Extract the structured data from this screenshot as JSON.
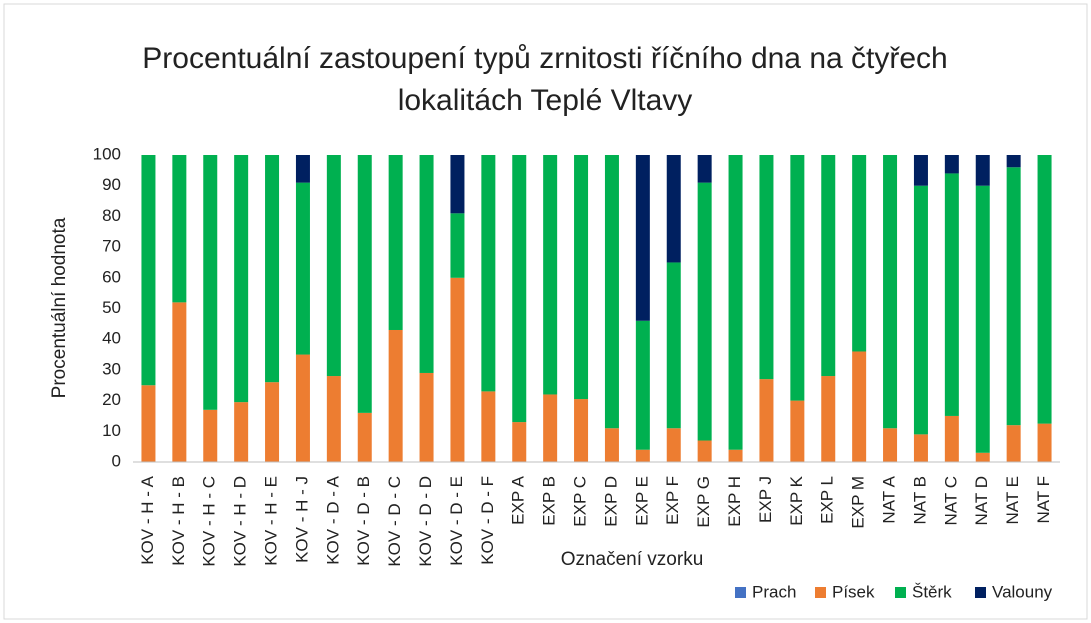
{
  "chart_data": {
    "type": "stacked_bar",
    "title": "Procentuální zastoupení typů zrnitosti říčního dna na čtyřech lokalitách Teplé Vltavy",
    "x_label": "Označení vzorku",
    "y_label": "Procentuální hodnota",
    "categories": [
      "KOV - H - A",
      "KOV - H - B",
      "KOV - H - C",
      "KOV - H - D",
      "KOV - H - E",
      "KOV - H - J",
      "KOV - D - A",
      "KOV - D - B",
      "KOV - D - C",
      "KOV - D - D",
      "KOV - D - E",
      "KOV - D - F",
      "EXP A",
      "EXP B",
      "EXP C",
      "EXP D",
      "EXP E",
      "EXP F",
      "EXP G",
      "EXP H",
      "EXP J",
      "EXP K",
      "EXP L",
      "EXP M",
      "NAT A",
      "NAT B",
      "NAT C",
      "NAT D",
      "NAT E",
      "NAT F"
    ],
    "series": [
      {
        "name": "Prach",
        "color": "#4472c4",
        "values": [
          0,
          0,
          0,
          0,
          0,
          0,
          0,
          0,
          0,
          0,
          0,
          0,
          0,
          0,
          0,
          0,
          0,
          0,
          0,
          0,
          0,
          0,
          0,
          0,
          0,
          0,
          0,
          0,
          0,
          0
        ]
      },
      {
        "name": "Písek",
        "color": "#ed7d31",
        "values": [
          25,
          52,
          17,
          19.5,
          26,
          35,
          28,
          16,
          43,
          29,
          60,
          23,
          13,
          22,
          20.5,
          11,
          4,
          11,
          7,
          4,
          27,
          20,
          28,
          36,
          11,
          9,
          15,
          3,
          12,
          12.5
        ]
      },
      {
        "name": "Štěrk",
        "color": "#00b050",
        "values": [
          75,
          48,
          83,
          80.5,
          74,
          56,
          72,
          84,
          57,
          71,
          21,
          77,
          87,
          78,
          79.5,
          89,
          42,
          54,
          84,
          96,
          73,
          80,
          72,
          64,
          89,
          81,
          79,
          87,
          84,
          87.5
        ]
      },
      {
        "name": "Valouny",
        "color": "#002060",
        "values": [
          0,
          0,
          0,
          0,
          0,
          9,
          0,
          0,
          0,
          0,
          19,
          0,
          0,
          0,
          0,
          0,
          54,
          35,
          9,
          0,
          0,
          0,
          0,
          0,
          0,
          10,
          6,
          10,
          4,
          0
        ]
      }
    ],
    "ylim": [
      0,
      100
    ],
    "yticks": [
      0,
      10,
      20,
      30,
      40,
      50,
      60,
      70,
      80,
      90,
      100
    ],
    "grid": false,
    "legend": "bottom-right"
  }
}
